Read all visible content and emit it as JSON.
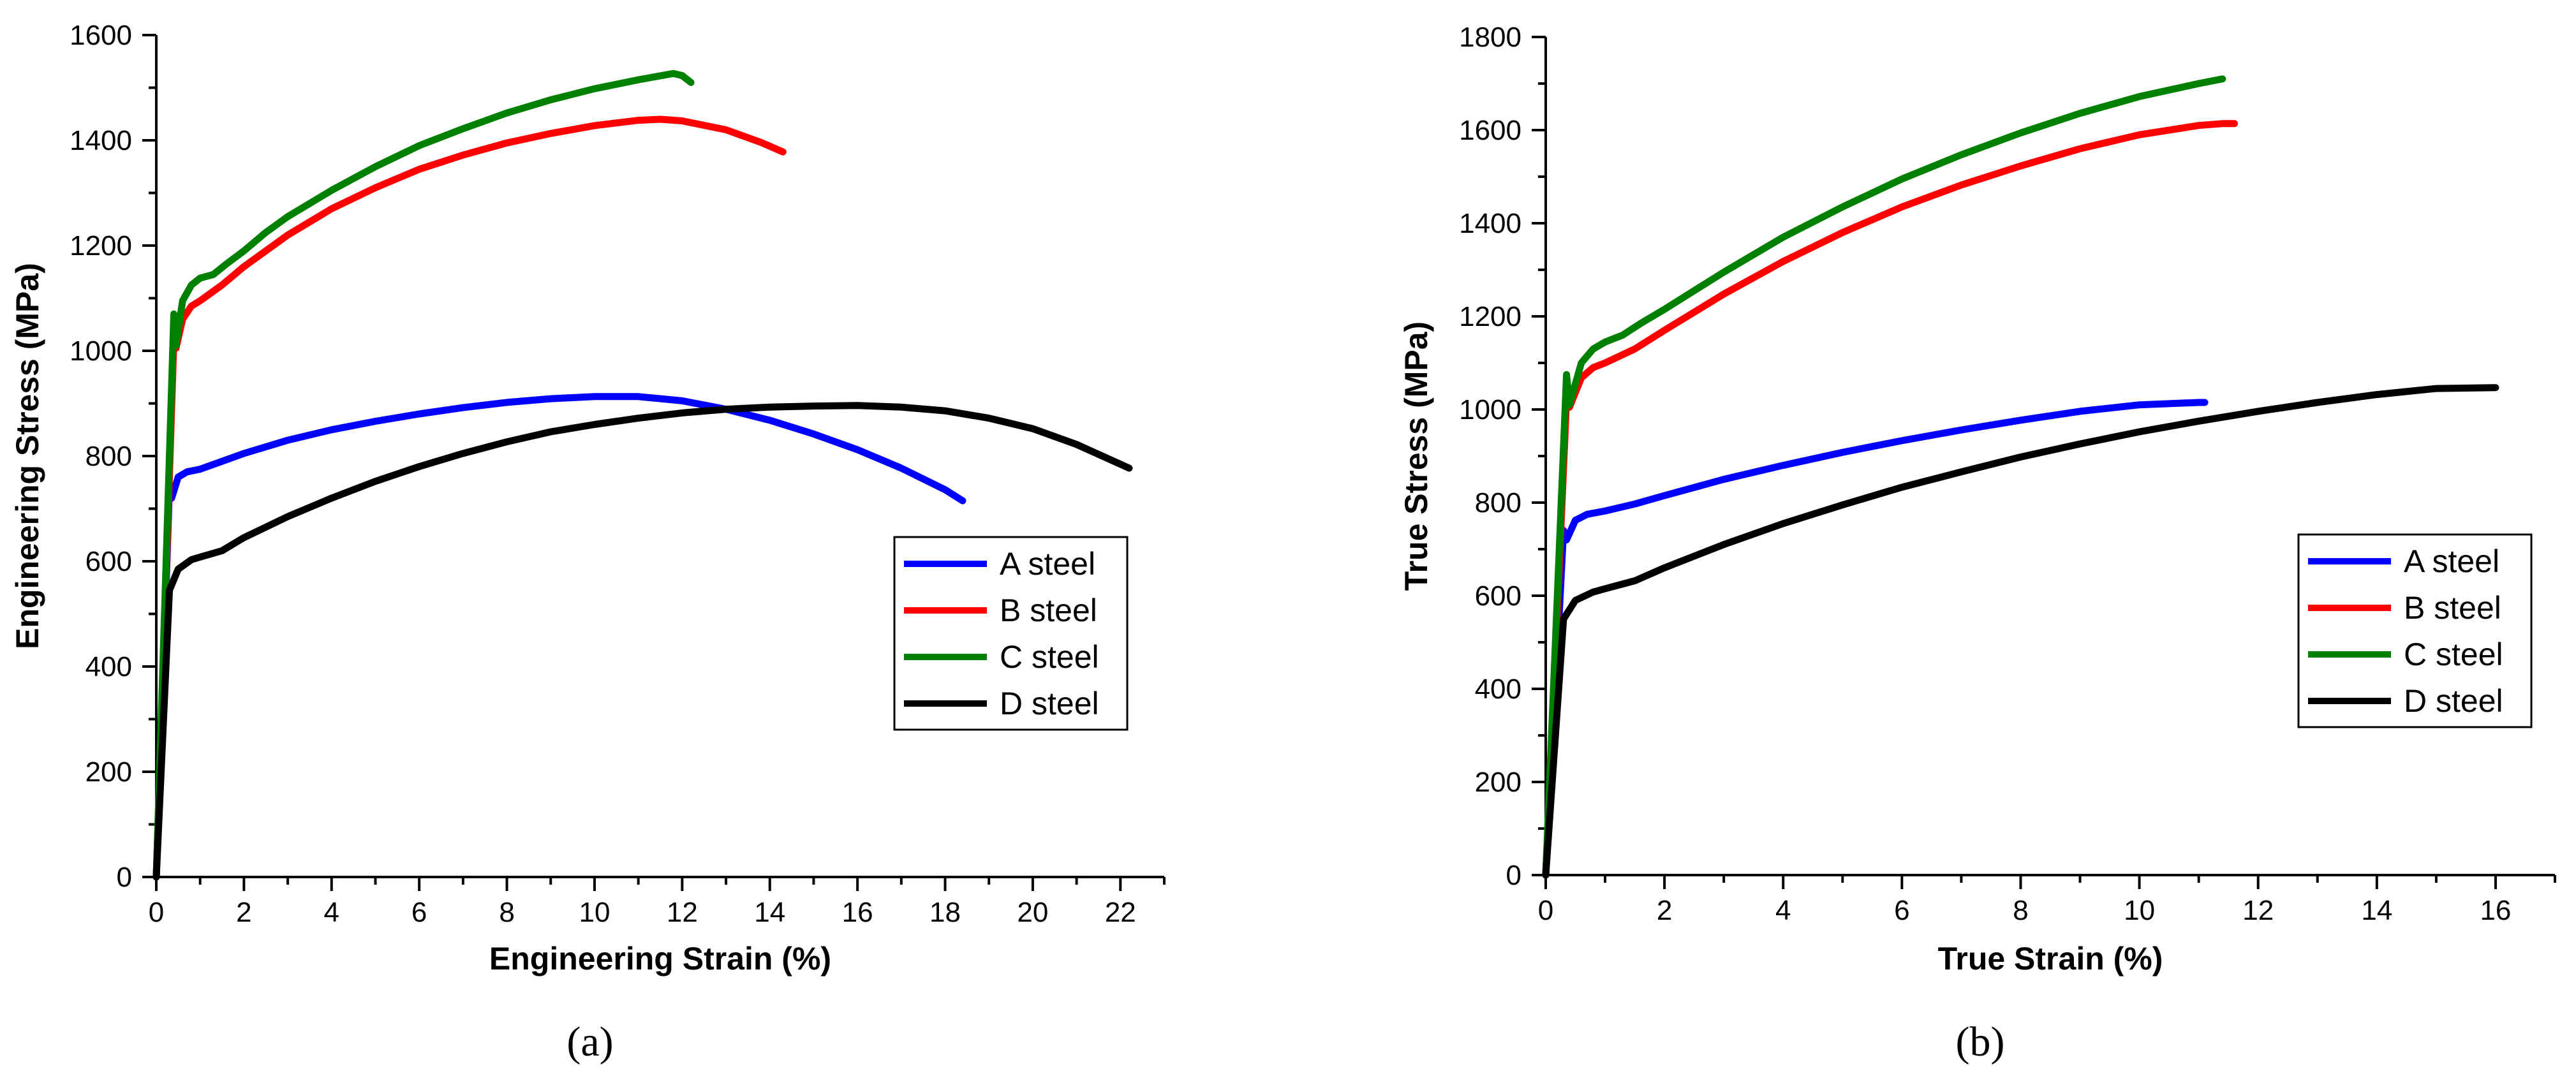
{
  "chart_data": [
    {
      "type": "line",
      "panel_label": "(a)",
      "xlabel": "Engineering Strain (%)",
      "ylabel": "Engineering Stress (MPa)",
      "xlim": [
        0,
        23
      ],
      "ylim": [
        0,
        1600
      ],
      "xticks": [
        0,
        2,
        4,
        6,
        8,
        10,
        12,
        14,
        16,
        18,
        20,
        22
      ],
      "yticks": [
        0,
        200,
        400,
        600,
        800,
        1000,
        1200,
        1400,
        1600
      ],
      "grid": false,
      "legend_position": "right-middle",
      "series": [
        {
          "name": "A steel",
          "color": "#0000ff",
          "x": [
            0,
            0.3,
            0.35,
            0.5,
            0.7,
            1.0,
            1.5,
            2,
            3,
            4,
            5,
            6,
            7,
            8,
            9,
            10,
            11,
            12,
            13,
            14,
            15,
            16,
            17,
            18,
            18.4
          ],
          "y": [
            0,
            740,
            720,
            760,
            770,
            775,
            790,
            805,
            830,
            850,
            866,
            880,
            892,
            902,
            909,
            913,
            913,
            905,
            889,
            868,
            842,
            812,
            777,
            736,
            715
          ]
        },
        {
          "name": "B steel",
          "color": "#ff0000",
          "x": [
            0,
            0.4,
            0.45,
            0.6,
            0.8,
            1.0,
            1.5,
            2,
            3,
            4,
            5,
            6,
            7,
            8,
            9,
            10,
            11,
            11.5,
            12,
            13,
            13.8,
            14.3
          ],
          "y": [
            0,
            1020,
            1005,
            1060,
            1085,
            1095,
            1125,
            1160,
            1220,
            1270,
            1310,
            1345,
            1372,
            1395,
            1413,
            1428,
            1438,
            1440,
            1437,
            1420,
            1396,
            1378
          ]
        },
        {
          "name": "C steel",
          "color": "#008000",
          "x": [
            0,
            0.4,
            0.45,
            0.6,
            0.8,
            1.0,
            1.3,
            1.6,
            2,
            2.5,
            3,
            4,
            5,
            6,
            7,
            8,
            9,
            10,
            11,
            11.8,
            12.0,
            12.2
          ],
          "y": [
            0,
            1070,
            1010,
            1095,
            1125,
            1138,
            1145,
            1165,
            1190,
            1225,
            1255,
            1305,
            1350,
            1390,
            1422,
            1452,
            1477,
            1498,
            1515,
            1527,
            1523,
            1510
          ]
        },
        {
          "name": "D steel",
          "color": "#000000",
          "x": [
            0,
            0.3,
            0.5,
            0.8,
            1.0,
            1.5,
            2,
            3,
            4,
            5,
            6,
            7,
            8,
            9,
            10,
            11,
            12,
            13,
            14,
            15,
            16,
            17,
            18,
            19,
            20,
            21,
            22.2
          ],
          "y": [
            0,
            545,
            585,
            603,
            608,
            620,
            645,
            685,
            720,
            752,
            780,
            805,
            827,
            846,
            860,
            872,
            882,
            889,
            893,
            895,
            896,
            893,
            886,
            872,
            852,
            822,
            777
          ]
        }
      ]
    },
    {
      "type": "line",
      "panel_label": "(b)",
      "xlabel": "True Strain (%)",
      "ylabel": "True Stress (MPa)",
      "xlim": [
        0,
        17
      ],
      "ylim": [
        0,
        1800
      ],
      "xticks": [
        0,
        2,
        4,
        6,
        8,
        10,
        12,
        14,
        16
      ],
      "yticks": [
        0,
        200,
        400,
        600,
        800,
        1000,
        1200,
        1400,
        1600,
        1800
      ],
      "grid": false,
      "legend_position": "right-middle",
      "series": [
        {
          "name": "A steel",
          "color": "#0000ff",
          "x": [
            0,
            0.3,
            0.35,
            0.5,
            0.7,
            1.0,
            1.5,
            2,
            3,
            4,
            5,
            6,
            7,
            8,
            9,
            10,
            11,
            11.1
          ],
          "y": [
            0,
            740,
            720,
            762,
            775,
            782,
            797,
            815,
            850,
            880,
            908,
            933,
            956,
            977,
            996,
            1010,
            1015,
            1015
          ]
        },
        {
          "name": "B steel",
          "color": "#ff0000",
          "x": [
            0,
            0.35,
            0.4,
            0.6,
            0.8,
            1.0,
            1.5,
            2,
            3,
            4,
            5,
            6,
            7,
            8,
            9,
            10,
            11,
            11.4,
            11.6
          ],
          "y": [
            0,
            1020,
            1005,
            1068,
            1090,
            1100,
            1130,
            1170,
            1248,
            1318,
            1380,
            1435,
            1482,
            1523,
            1560,
            1590,
            1610,
            1614,
            1614
          ]
        },
        {
          "name": "C steel",
          "color": "#008000",
          "x": [
            0,
            0.35,
            0.4,
            0.6,
            0.8,
            1.0,
            1.3,
            1.6,
            2,
            3,
            4,
            5,
            6,
            7,
            8,
            9,
            10,
            11,
            11.4
          ],
          "y": [
            0,
            1075,
            1010,
            1100,
            1130,
            1145,
            1160,
            1185,
            1215,
            1295,
            1370,
            1435,
            1495,
            1547,
            1594,
            1636,
            1672,
            1700,
            1710
          ]
        },
        {
          "name": "D steel",
          "color": "#000000",
          "x": [
            0,
            0.3,
            0.5,
            0.8,
            1.0,
            1.5,
            2,
            3,
            4,
            5,
            6,
            7,
            8,
            9,
            10,
            11,
            12,
            13,
            14,
            15,
            16
          ],
          "y": [
            0,
            550,
            590,
            608,
            615,
            632,
            660,
            710,
            755,
            795,
            833,
            866,
            898,
            926,
            952,
            975,
            996,
            1015,
            1032,
            1045,
            1047
          ]
        }
      ]
    }
  ]
}
